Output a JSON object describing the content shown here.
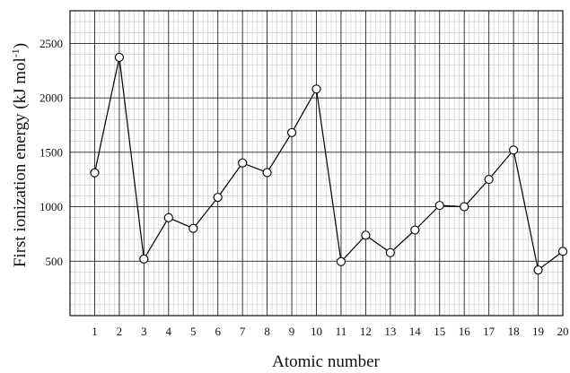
{
  "chart_data": {
    "type": "line",
    "title": "",
    "xlabel": "Atomic number",
    "ylabel_main": "First ionization energy (kJ mol",
    "ylabel_sup": "-1",
    "ylabel_close": ")",
    "x": [
      1,
      2,
      3,
      4,
      5,
      6,
      7,
      8,
      9,
      10,
      11,
      12,
      13,
      14,
      15,
      16,
      17,
      18,
      19,
      20
    ],
    "y": [
      1312,
      2372,
      520,
      899,
      801,
      1086,
      1402,
      1314,
      1681,
      2081,
      496,
      738,
      578,
      786,
      1012,
      1000,
      1251,
      1521,
      419,
      590
    ],
    "xlim": [
      0,
      20
    ],
    "ylim": [
      0,
      2800
    ],
    "yticks": [
      500,
      1000,
      1500,
      2000,
      2500
    ],
    "grid": true,
    "minor_grid": true,
    "legend": "none",
    "colors": {
      "line": "#000000",
      "marker_fill": "#ffffff",
      "major_grid": "#222222",
      "minor_grid": "#c8c8c8"
    }
  }
}
